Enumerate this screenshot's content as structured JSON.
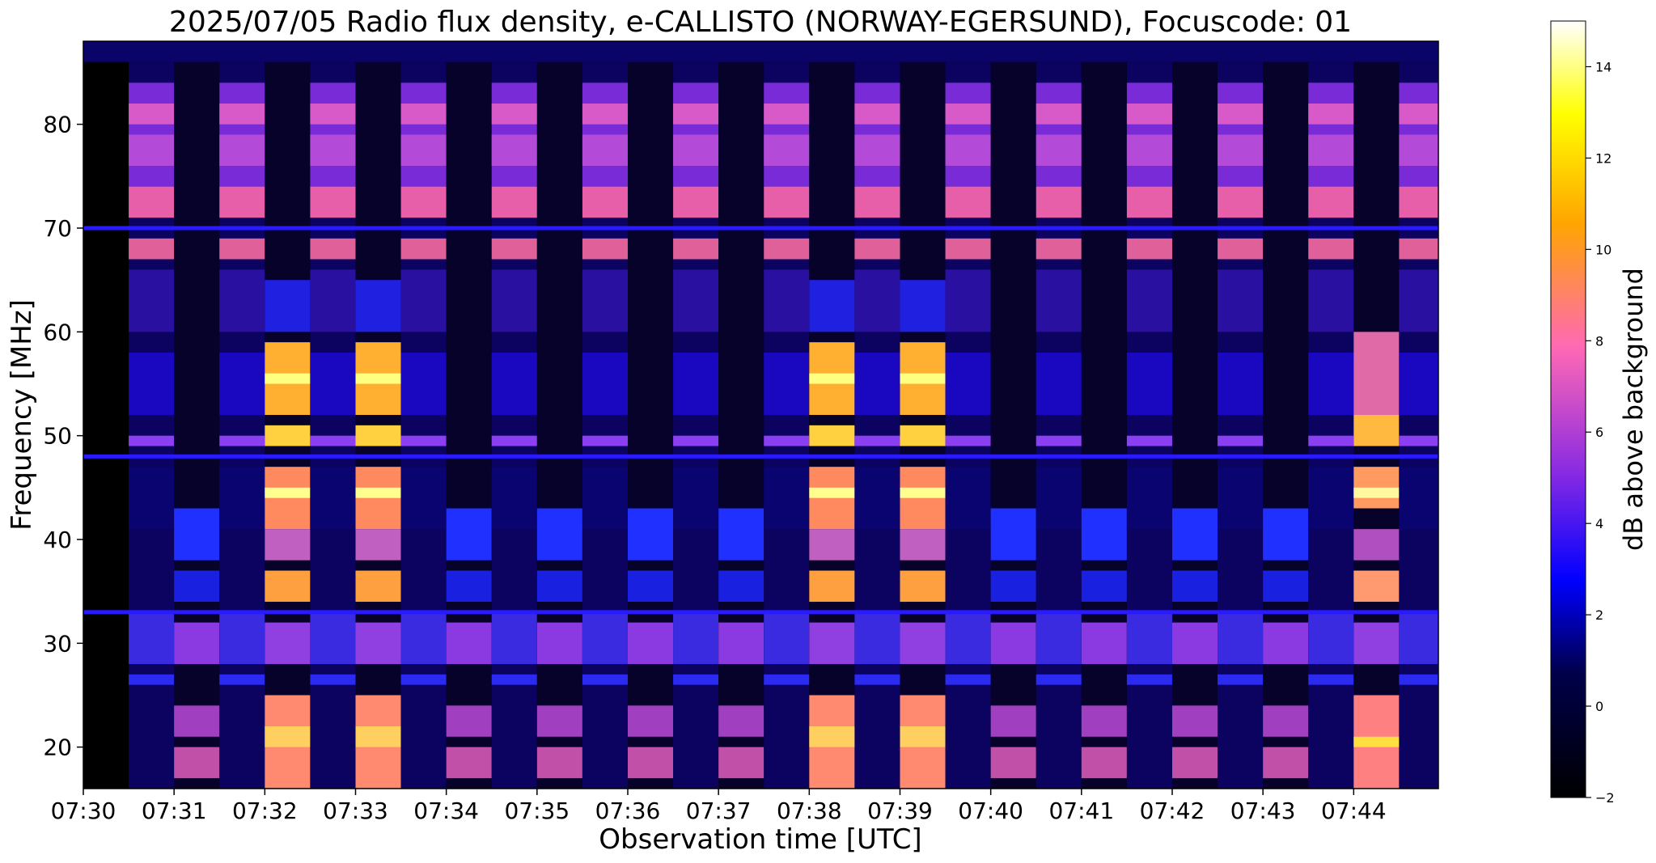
{
  "chart_data": {
    "type": "heatmap",
    "title": "2025/07/05  Radio flux density, e-CALLISTO (NORWAY-EGERSUND), Focuscode: 01",
    "xlabel": "Observation time [UTC]",
    "ylabel": "Frequency [MHz]",
    "xlim": [
      "07:30:00",
      "07:44:56"
    ],
    "ylim": [
      16,
      88
    ],
    "x_ticks": [
      "07:30",
      "07:31",
      "07:32",
      "07:33",
      "07:34",
      "07:35",
      "07:36",
      "07:37",
      "07:38",
      "07:39",
      "07:40",
      "07:41",
      "07:42",
      "07:43",
      "07:44"
    ],
    "y_ticks": [
      20,
      30,
      40,
      50,
      60,
      70,
      80
    ],
    "colorbar": {
      "label": "dB above background",
      "range": [
        -2,
        15
      ],
      "ticks": [
        -2,
        0,
        2,
        4,
        6,
        8,
        10,
        12,
        14
      ],
      "colormap": "gnuplot2",
      "stops": [
        "#000000",
        "#0000ff",
        "#8a2be2",
        "#ff69b4",
        "#ffa500",
        "#ffff00",
        "#ffffff"
      ]
    },
    "segments": [
      {
        "start": "07:30:00",
        "end": "07:30:30",
        "state": "off"
      },
      {
        "start": "07:30:30",
        "end": "07:31:00",
        "state": "active"
      },
      {
        "start": "07:31:00",
        "end": "07:31:30",
        "state": "low-band"
      },
      {
        "start": "07:31:30",
        "end": "07:32:00",
        "state": "active"
      },
      {
        "start": "07:32:00",
        "end": "07:32:30",
        "state": "strong-low"
      },
      {
        "start": "07:32:30",
        "end": "07:33:00",
        "state": "active"
      },
      {
        "start": "07:33:00",
        "end": "07:33:30",
        "state": "strong-low"
      },
      {
        "start": "07:33:30",
        "end": "07:34:00",
        "state": "active"
      },
      {
        "start": "07:34:00",
        "end": "07:34:30",
        "state": "low-band"
      },
      {
        "start": "07:34:30",
        "end": "07:35:00",
        "state": "active"
      },
      {
        "start": "07:35:00",
        "end": "07:35:30",
        "state": "low-band"
      },
      {
        "start": "07:35:30",
        "end": "07:36:00",
        "state": "active"
      },
      {
        "start": "07:36:00",
        "end": "07:36:30",
        "state": "low-band"
      },
      {
        "start": "07:36:30",
        "end": "07:37:00",
        "state": "active"
      },
      {
        "start": "07:37:00",
        "end": "07:37:30",
        "state": "low-band"
      },
      {
        "start": "07:37:30",
        "end": "07:38:00",
        "state": "active"
      },
      {
        "start": "07:38:00",
        "end": "07:38:30",
        "state": "strong-low"
      },
      {
        "start": "07:38:30",
        "end": "07:39:00",
        "state": "active"
      },
      {
        "start": "07:39:00",
        "end": "07:39:30",
        "state": "strong-low"
      },
      {
        "start": "07:39:30",
        "end": "07:40:00",
        "state": "active"
      },
      {
        "start": "07:40:00",
        "end": "07:40:30",
        "state": "low-band"
      },
      {
        "start": "07:40:30",
        "end": "07:41:00",
        "state": "active"
      },
      {
        "start": "07:41:00",
        "end": "07:41:30",
        "state": "low-band"
      },
      {
        "start": "07:41:30",
        "end": "07:42:00",
        "state": "active"
      },
      {
        "start": "07:42:00",
        "end": "07:42:30",
        "state": "low-band"
      },
      {
        "start": "07:42:30",
        "end": "07:43:00",
        "state": "active"
      },
      {
        "start": "07:43:00",
        "end": "07:43:30",
        "state": "low-band"
      },
      {
        "start": "07:43:30",
        "end": "07:44:00",
        "state": "active"
      },
      {
        "start": "07:44:00",
        "end": "07:44:30",
        "state": "medium-low"
      },
      {
        "start": "07:44:30",
        "end": "07:44:56",
        "state": "active"
      }
    ],
    "persistent_lines_mhz": [
      70,
      33,
      48
    ]
  }
}
